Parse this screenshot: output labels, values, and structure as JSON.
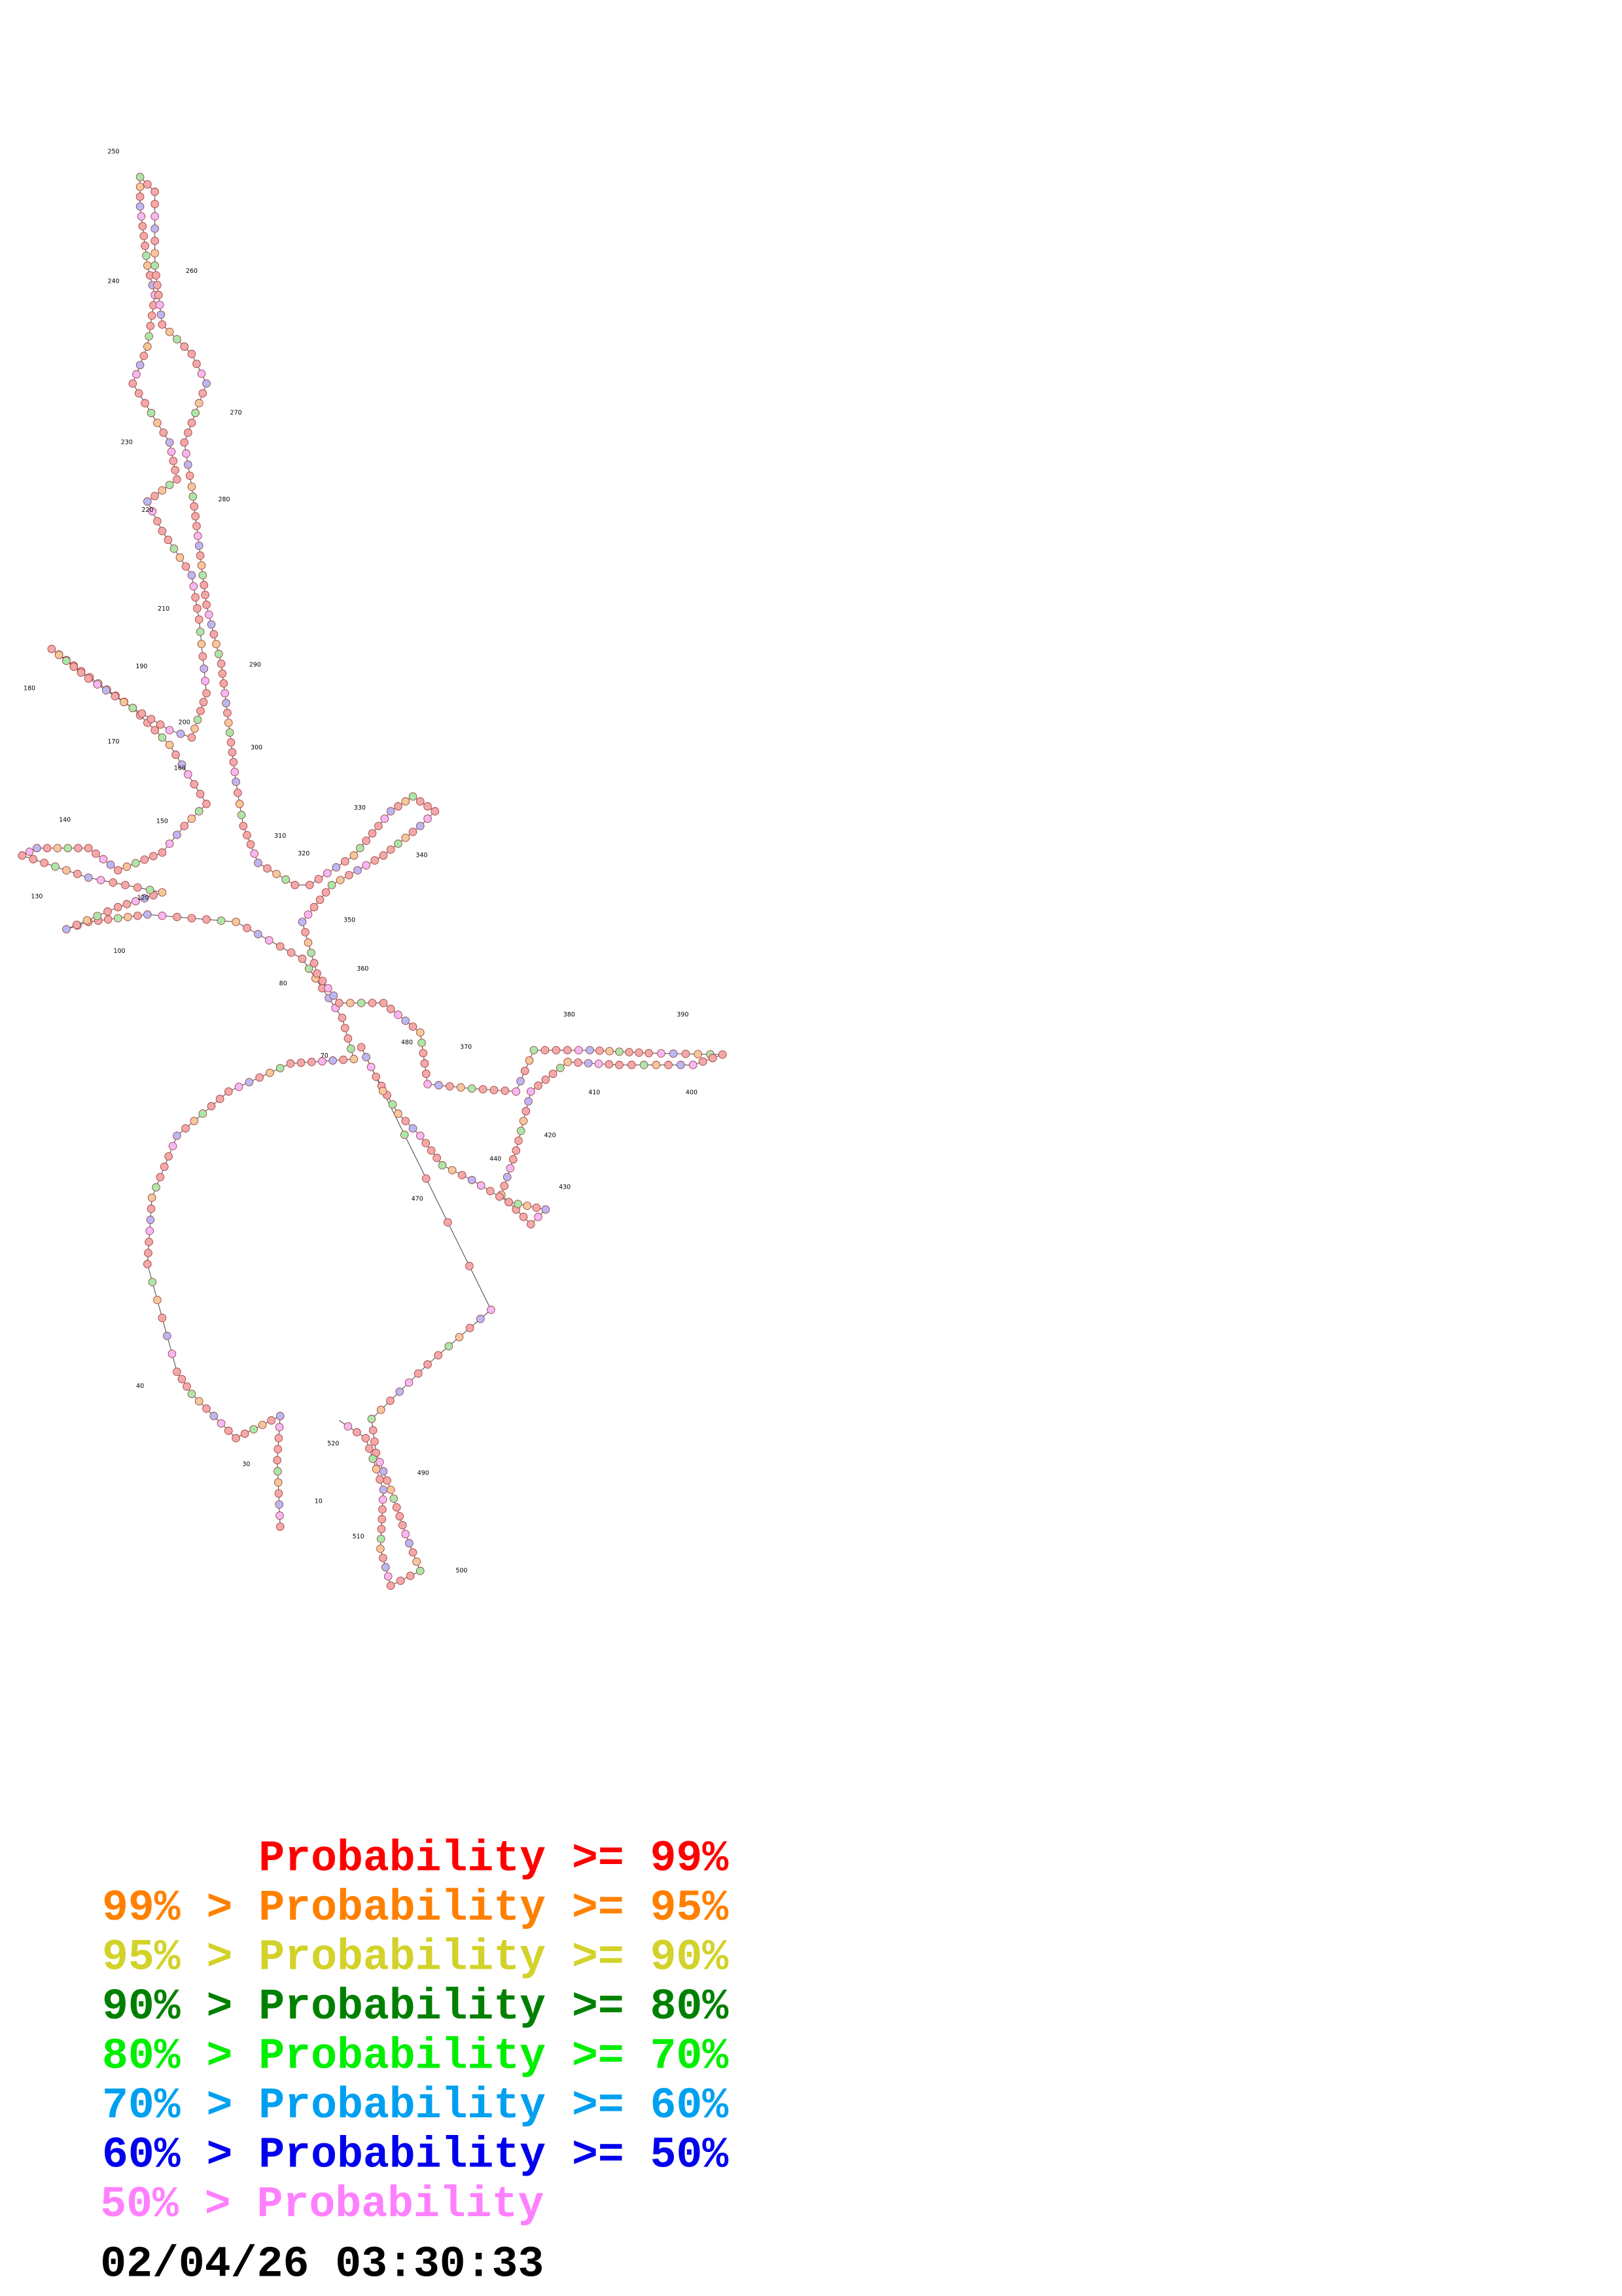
{
  "position_labels": [
    "250",
    "240",
    "260",
    "270",
    "230",
    "220",
    "280",
    "210",
    "290",
    "180",
    "190",
    "170",
    "200",
    "300",
    "160",
    "330",
    "140",
    "150",
    "310",
    "320",
    "340",
    "130",
    "120",
    "350",
    "100",
    "360",
    "80",
    "380",
    "390",
    "70",
    "370",
    "480",
    "410",
    "400",
    "420",
    "440",
    "430",
    "470",
    "40",
    "30",
    "520",
    "490",
    "10",
    "510",
    "500"
  ],
  "legend": [
    {
      "text": "Probability >= 99%",
      "color": "#ff0000"
    },
    {
      "text": "99% > Probability >= 95%",
      "color": "#ff8000"
    },
    {
      "text": "95% > Probability >= 90%",
      "color": "#d2d22a"
    },
    {
      "text": "90% > Probability >= 80%",
      "color": "#008000"
    },
    {
      "text": "80% > Probability >= 70%",
      "color": "#00ee00"
    },
    {
      "text": "70% > Probability >= 60%",
      "color": "#00a0f0"
    },
    {
      "text": "60% > Probability >= 50%",
      "color": "#0000ee"
    },
    {
      "text": "50% > Probability",
      "color": "#ff80ff"
    }
  ],
  "timestamp": "02/04/26 03:30:33"
}
